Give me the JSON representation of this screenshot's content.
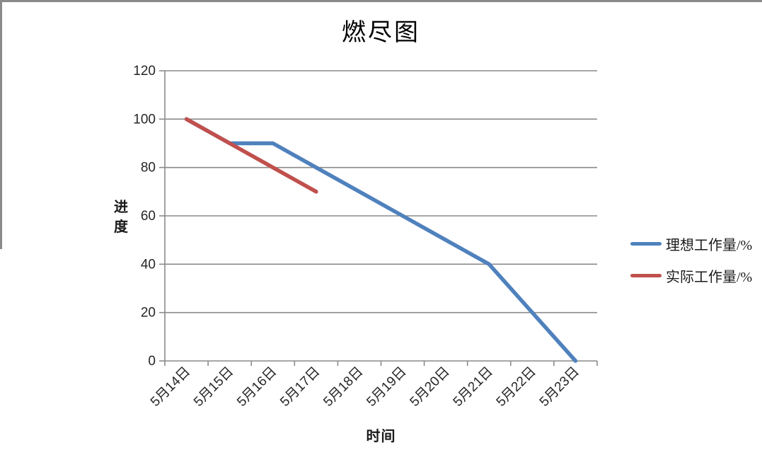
{
  "chart_data": {
    "type": "line",
    "title": "燃尽图",
    "xlabel": "时间",
    "ylabel": "进度",
    "categories": [
      "5月14日",
      "5月15日",
      "5月16日",
      "5月17日",
      "5月18日",
      "5月19日",
      "5月20日",
      "5月21日",
      "5月22日",
      "5月23日"
    ],
    "series": [
      {
        "name": "理想工作量/%",
        "color": "#4F81BD",
        "values": [
          100,
          90,
          90,
          80,
          70,
          60,
          50,
          40,
          20,
          0
        ]
      },
      {
        "name": "实际工作量/%",
        "color": "#C0504D",
        "values": [
          100,
          90,
          80,
          70,
          null,
          null,
          null,
          null,
          null,
          null
        ]
      }
    ],
    "ylim": [
      0,
      120
    ],
    "yticks": [
      0,
      20,
      40,
      60,
      80,
      100,
      120
    ],
    "grid": true,
    "legend_position": "right",
    "x_tick_label_rotation_deg": -45
  },
  "style": {
    "grid_color": "#8a8a8a",
    "axis_color": "#8a8a8a",
    "tick_label_color": "#262626",
    "title_color": "#000000",
    "frame_border_color": "#8a8a8a",
    "background": "#ffffff",
    "series_line_width": 5.5
  }
}
